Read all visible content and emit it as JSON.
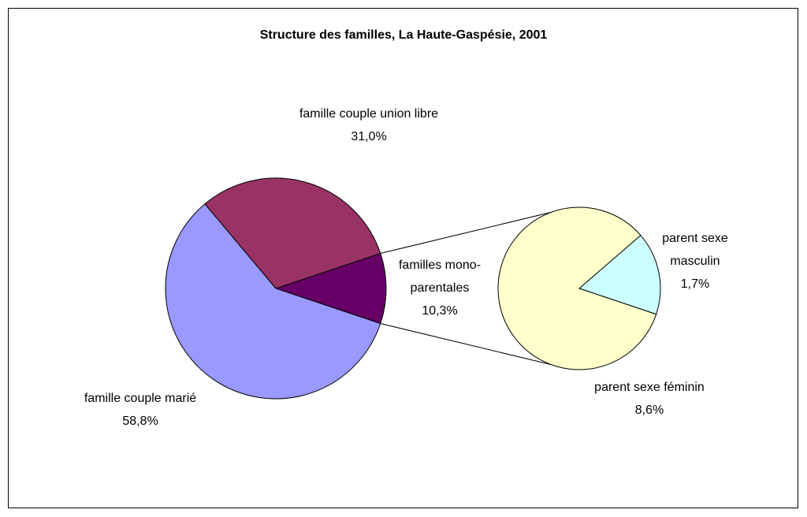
{
  "chart_data": {
    "type": "pie-of-pie",
    "title": "Structure des familles, La Haute-Gaspésie, 2001",
    "categories": [
      "famille couple marié",
      "famille couple union libre",
      "familles mono-parentales"
    ],
    "values": [
      58.8,
      31.0,
      10.3
    ],
    "value_labels": [
      "58,8%",
      "31,0%",
      "10,3%"
    ],
    "colors": [
      "#9999ff",
      "#993366",
      "#660066"
    ],
    "secondary": {
      "categories": [
        "parent sexe masculin",
        "parent sexe féminin"
      ],
      "values": [
        1.7,
        8.6
      ],
      "value_labels": [
        "1,7%",
        "8,6%"
      ],
      "colors": [
        "#ccffff",
        "#ffffcc"
      ]
    }
  }
}
